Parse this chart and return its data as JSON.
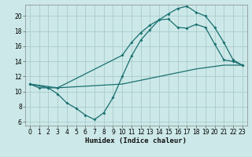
{
  "xlabel": "Humidex (Indice chaleur)",
  "background_color": "#cce8e8",
  "grid_color": "#aacccc",
  "line_color": "#1a7070",
  "xlim": [
    -0.5,
    23.5
  ],
  "ylim": [
    5.5,
    21.5
  ],
  "xticks": [
    0,
    1,
    2,
    3,
    4,
    5,
    6,
    7,
    8,
    9,
    10,
    11,
    12,
    13,
    14,
    15,
    16,
    17,
    18,
    19,
    20,
    21,
    22,
    23
  ],
  "yticks": [
    6,
    8,
    10,
    12,
    14,
    16,
    18,
    20
  ],
  "curve1_x": [
    0,
    1,
    2,
    3,
    4,
    5,
    6,
    7,
    8,
    9,
    10,
    11,
    12,
    13,
    14,
    15,
    16,
    17,
    18,
    19,
    20,
    21,
    22,
    23
  ],
  "curve1_y": [
    11,
    10.5,
    10.5,
    9.7,
    8.5,
    7.8,
    6.9,
    6.3,
    7.2,
    9.2,
    12.0,
    14.7,
    16.8,
    18.2,
    19.5,
    20.3,
    21.0,
    21.3,
    20.5,
    20.0,
    18.5,
    16.5,
    14.2,
    13.5
  ],
  "curve2_x": [
    0,
    2,
    3,
    10,
    11,
    12,
    13,
    14,
    15,
    16,
    17,
    18,
    19,
    20,
    21,
    22,
    23
  ],
  "curve2_y": [
    11,
    10.5,
    10.5,
    14.8,
    16.5,
    17.8,
    18.8,
    19.5,
    19.6,
    18.5,
    18.4,
    18.9,
    18.5,
    16.3,
    14.2,
    14.0,
    13.5
  ],
  "curve3_x": [
    0,
    3,
    10,
    14,
    18,
    21,
    23
  ],
  "curve3_y": [
    11,
    10.5,
    11.0,
    12.0,
    13.0,
    13.5,
    13.5
  ]
}
